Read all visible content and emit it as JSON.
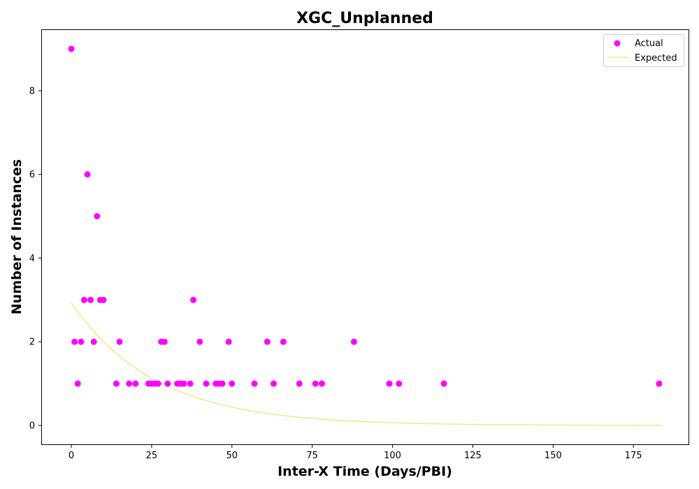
{
  "chart_data": {
    "type": "scatter",
    "title": "XGC_Unplanned",
    "xlabel": "Inter-X Time (Days/PBI)",
    "ylabel": "Number of Instances",
    "xlim": [
      -9.15,
      192.15
    ],
    "ylim": [
      -0.45,
      9.45
    ],
    "xticks": [
      0,
      25,
      50,
      75,
      100,
      125,
      150,
      175
    ],
    "yticks": [
      0,
      2,
      4,
      6,
      8
    ],
    "grid": false,
    "legend_position": "top-right",
    "series": [
      {
        "name": "Actual",
        "kind": "scatter",
        "color": "#ff00ff",
        "points": [
          [
            0,
            9
          ],
          [
            1,
            2
          ],
          [
            2,
            1
          ],
          [
            3,
            2
          ],
          [
            4,
            3
          ],
          [
            5,
            6
          ],
          [
            6,
            3
          ],
          [
            7,
            2
          ],
          [
            8,
            5
          ],
          [
            9,
            3
          ],
          [
            10,
            3
          ],
          [
            14,
            1
          ],
          [
            15,
            2
          ],
          [
            18,
            1
          ],
          [
            20,
            1
          ],
          [
            24,
            1
          ],
          [
            25,
            1
          ],
          [
            26,
            1
          ],
          [
            27,
            1
          ],
          [
            28,
            2
          ],
          [
            29,
            2
          ],
          [
            30,
            1
          ],
          [
            33,
            1
          ],
          [
            34,
            1
          ],
          [
            35,
            1
          ],
          [
            37,
            1
          ],
          [
            38,
            3
          ],
          [
            40,
            2
          ],
          [
            42,
            1
          ],
          [
            45,
            1
          ],
          [
            46,
            1
          ],
          [
            47,
            1
          ],
          [
            49,
            2
          ],
          [
            50,
            1
          ],
          [
            57,
            1
          ],
          [
            61,
            2
          ],
          [
            63,
            1
          ],
          [
            66,
            2
          ],
          [
            71,
            1
          ],
          [
            76,
            1
          ],
          [
            78,
            1
          ],
          [
            88,
            2
          ],
          [
            99,
            1
          ],
          [
            102,
            1
          ],
          [
            116,
            1
          ],
          [
            183,
            1
          ]
        ]
      },
      {
        "name": "Expected",
        "kind": "line",
        "color": "#f0e68c",
        "curve": {
          "form": "exponential_decay",
          "amplitude": 2.93,
          "decay_rate": 0.038,
          "x_start": 0,
          "x_end": 184
        }
      }
    ]
  }
}
